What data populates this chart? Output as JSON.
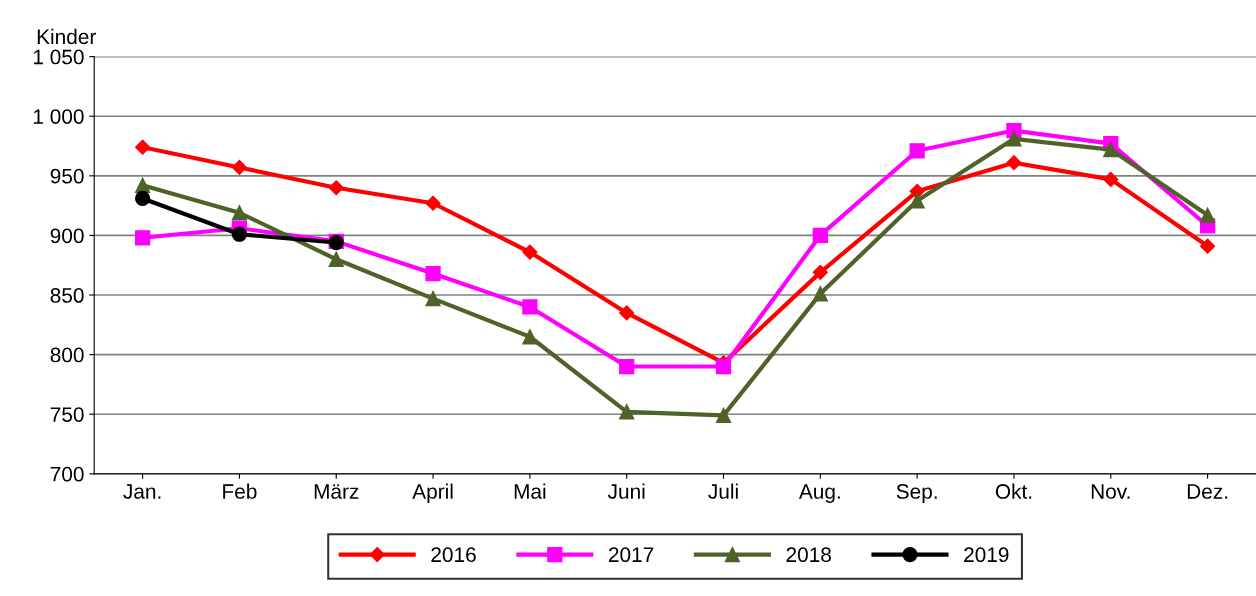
{
  "chart_data": {
    "type": "line",
    "ylabel": "Kinder",
    "categories": [
      "Jan.",
      "Feb",
      "März",
      "April",
      "Mai",
      "Juni",
      "Juli",
      "Aug.",
      "Sep.",
      "Okt.",
      "Nov.",
      "Dez."
    ],
    "series": [
      {
        "name": "2016",
        "color": "#ff0000",
        "marker": "diamond",
        "values": [
          974,
          957,
          940,
          927,
          886,
          835,
          793,
          869,
          937,
          961,
          947,
          891
        ]
      },
      {
        "name": "2017",
        "color": "#ff00ff",
        "marker": "square",
        "values": [
          898,
          906,
          895,
          868,
          840,
          790,
          790,
          900,
          971,
          988,
          977,
          908
        ]
      },
      {
        "name": "2018",
        "color": "#4f6228",
        "marker": "triangle",
        "values": [
          942,
          919,
          880,
          847,
          815,
          752,
          749,
          851,
          929,
          981,
          972,
          917
        ]
      },
      {
        "name": "2019",
        "color": "#000000",
        "marker": "circle",
        "values": [
          931,
          901,
          894,
          null,
          null,
          null,
          null,
          null,
          null,
          null,
          null,
          null
        ]
      }
    ],
    "ylim": [
      700,
      1050
    ],
    "yticks": [
      700,
      750,
      800,
      850,
      900,
      950,
      {
        "value": 1000,
        "label": "1 000"
      },
      {
        "value": 1050,
        "label": "1 050"
      }
    ],
    "grid": "y",
    "legend": "bottom",
    "line_style": "solid"
  }
}
